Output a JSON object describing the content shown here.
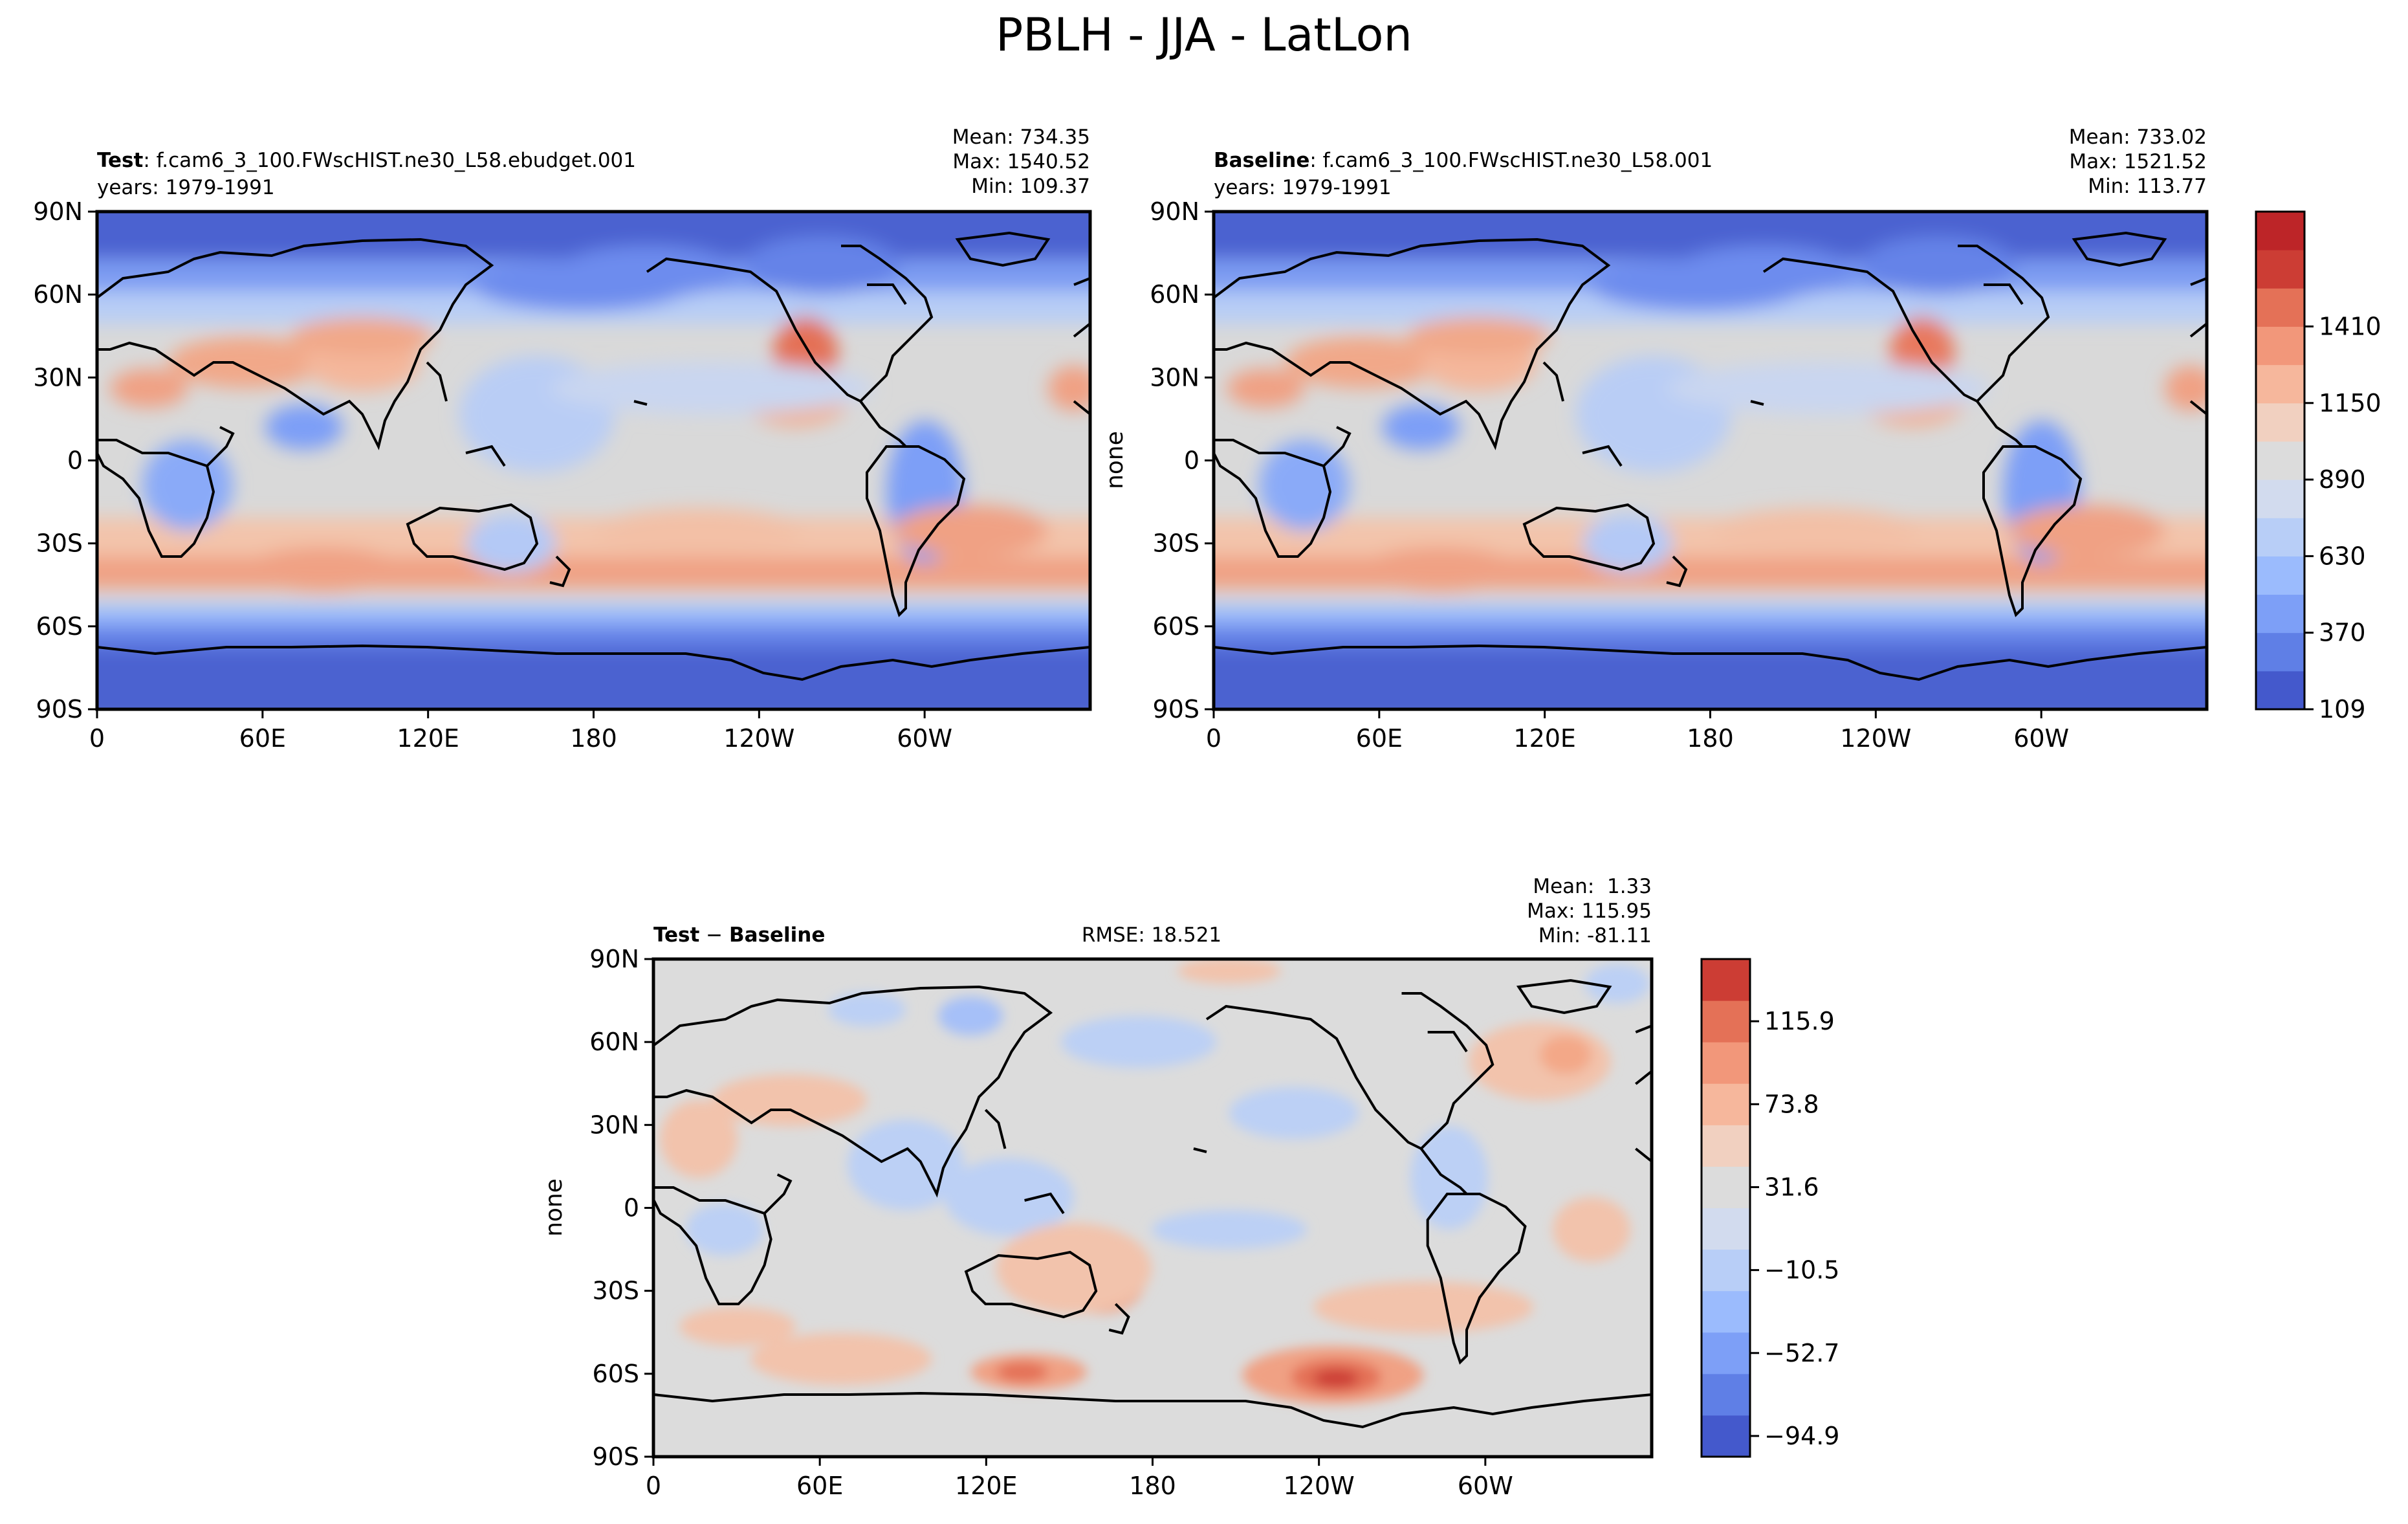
{
  "figure": {
    "title": "PBLH - JJA - LatLon"
  },
  "chart_data": [
    {
      "id": "test",
      "type": "heatmap",
      "title_bold": "Test",
      "title_rest": ": f.cam6_3_100.FWscHIST.ne30_L58.ebudget.001",
      "subtitle": "years: 1979-1991",
      "stats": [
        "Mean: 734.35",
        "Max: 1540.52",
        "Min: 109.37"
      ],
      "ylabel": "",
      "xticks": [
        "0",
        "60E",
        "120E",
        "180",
        "120W",
        "60W"
      ],
      "yticks": [
        "90N",
        "60N",
        "30N",
        "0",
        "30S",
        "60S",
        "90S"
      ]
    },
    {
      "id": "baseline",
      "type": "heatmap",
      "title_bold": "Baseline",
      "title_rest": ": f.cam6_3_100.FWscHIST.ne30_L58.001",
      "subtitle": "years: 1979-1991",
      "stats": [
        "Mean: 733.02",
        "Max: 1521.52",
        "Min: 113.77"
      ],
      "ylabel": "none",
      "xticks": [
        "0",
        "60E",
        "120E",
        "180",
        "120W",
        "60W"
      ],
      "yticks": [
        "90N",
        "60N",
        "30N",
        "0",
        "30S",
        "60S",
        "90S"
      ],
      "colorbar": {
        "ticks": [
          "109",
          "370",
          "630",
          "890",
          "1150",
          "1410"
        ],
        "colors": [
          "#4459cc",
          "#5f7fe6",
          "#7d9ff7",
          "#9bbbfd",
          "#b8cef7",
          "#d2dbee",
          "#dcdcdc",
          "#f1d0c0",
          "#f6b79c",
          "#f2977a",
          "#e47157",
          "#cc3d34",
          "#bd2528"
        ]
      }
    },
    {
      "id": "diff",
      "type": "heatmap",
      "title_bold_a": "Test",
      "title_sep": " − ",
      "title_bold_b": "Baseline",
      "rmse": "RMSE: 18.521",
      "stats": [
        "Mean:  1.33",
        "Max: 115.95",
        "Min: -81.11"
      ],
      "ylabel": "none",
      "xticks": [
        "0",
        "60E",
        "120E",
        "180",
        "120W",
        "60W"
      ],
      "yticks": [
        "90N",
        "60N",
        "30N",
        "0",
        "30S",
        "60S",
        "90S"
      ],
      "colorbar": {
        "ticks": [
          "−94.9",
          "−52.7",
          "−10.5",
          "31.6",
          "73.8",
          "115.9"
        ],
        "colors": [
          "#4459cc",
          "#5f7fe6",
          "#7d9ff7",
          "#9bbbfd",
          "#b8cef7",
          "#d2dbee",
          "#dcdcdc",
          "#f1d0c0",
          "#f6b79c",
          "#f2977a",
          "#e47157",
          "#cc3d34"
        ]
      }
    }
  ]
}
